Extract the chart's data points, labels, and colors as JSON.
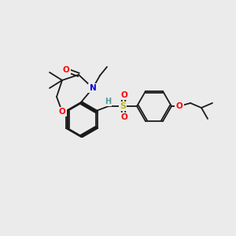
{
  "background_color": "#ebebeb",
  "bond_color": "#1a1a1a",
  "figsize": [
    3.0,
    3.0
  ],
  "dpi": 100,
  "atom_colors": {
    "O": "#ff0000",
    "N": "#0000cd",
    "S": "#b8b800",
    "H": "#4a9a9a",
    "C": "#1a1a1a"
  },
  "bond_lw": 1.3,
  "double_sep": 2.2
}
